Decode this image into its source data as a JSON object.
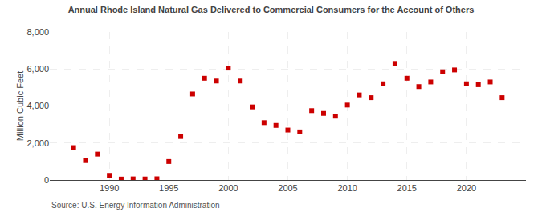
{
  "chart_data": {
    "type": "scatter",
    "title": "Annual Rhode Island Natural Gas Delivered to Commercial Consumers for the Account of Others",
    "ylabel": "Million Cubic Feet",
    "annotations": [
      "Source: U.S. Energy Information Administration"
    ],
    "x": [
      1987,
      1988,
      1989,
      1990,
      1991,
      1992,
      1993,
      1994,
      1995,
      1996,
      1997,
      1998,
      1999,
      2000,
      2001,
      2002,
      2003,
      2004,
      2005,
      2006,
      2007,
      2008,
      2009,
      2010,
      2011,
      2012,
      2013,
      2014,
      2015,
      2016,
      2017,
      2018,
      2019,
      2020,
      2021,
      2022,
      2023
    ],
    "values": [
      1750,
      1050,
      1400,
      250,
      50,
      60,
      55,
      65,
      1000,
      2350,
      4650,
      5500,
      5350,
      6050,
      5350,
      3950,
      3100,
      2950,
      2700,
      2600,
      3750,
      3600,
      3450,
      4050,
      4600,
      4450,
      5200,
      6300,
      5500,
      5050,
      5300,
      5850,
      5950,
      5200,
      5150,
      5300,
      4450
    ],
    "color": "#cc0000",
    "marker": "square",
    "xlim": [
      1985,
      2025
    ],
    "xticks": [
      1990,
      1995,
      2000,
      2005,
      2010,
      2015,
      2020
    ],
    "ylim": [
      0,
      8000
    ],
    "yticks": [
      0,
      {
        "value": 2000,
        "label": "2,000"
      },
      {
        "value": 4000,
        "label": "4,000"
      },
      {
        "value": 6000,
        "label": "6,000"
      },
      {
        "value": 8000,
        "label": "8,000"
      }
    ],
    "grid": true
  }
}
